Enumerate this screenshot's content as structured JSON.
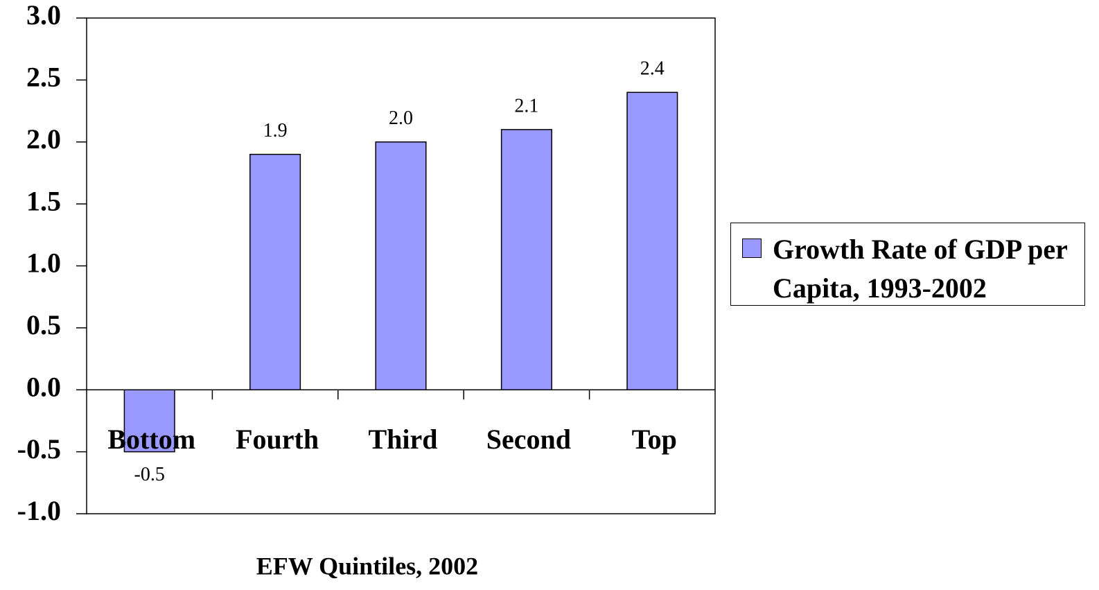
{
  "chart_data": {
    "type": "bar",
    "x_label": "EFW Quintiles, 2002",
    "categories": [
      "Bottom",
      "Fourth",
      "Third",
      "Second",
      "Top"
    ],
    "series": [
      {
        "name": "Growth Rate of GDP per Capita, 1993-2002",
        "color": "#9999ff",
        "values": [
          -0.5,
          1.9,
          2.0,
          2.1,
          2.4
        ],
        "value_labels": [
          "-0.5",
          "1.9",
          "2.0",
          "2.1",
          "2.4"
        ]
      }
    ],
    "ylim": [
      -1,
      3
    ],
    "yticks": [
      {
        "value": -1,
        "label": "-1.0"
      },
      {
        "value": -0.5,
        "label": "-0.5"
      },
      {
        "value": 0,
        "label": "0.0"
      },
      {
        "value": 0.5,
        "label": "0.5"
      },
      {
        "value": 1,
        "label": "1.0"
      },
      {
        "value": 1.5,
        "label": "1.5"
      },
      {
        "value": 2,
        "label": "2.0"
      },
      {
        "value": 2.5,
        "label": "2.5"
      },
      {
        "value": 3,
        "label": "3.0"
      }
    ],
    "grid": false,
    "legend": "right"
  }
}
